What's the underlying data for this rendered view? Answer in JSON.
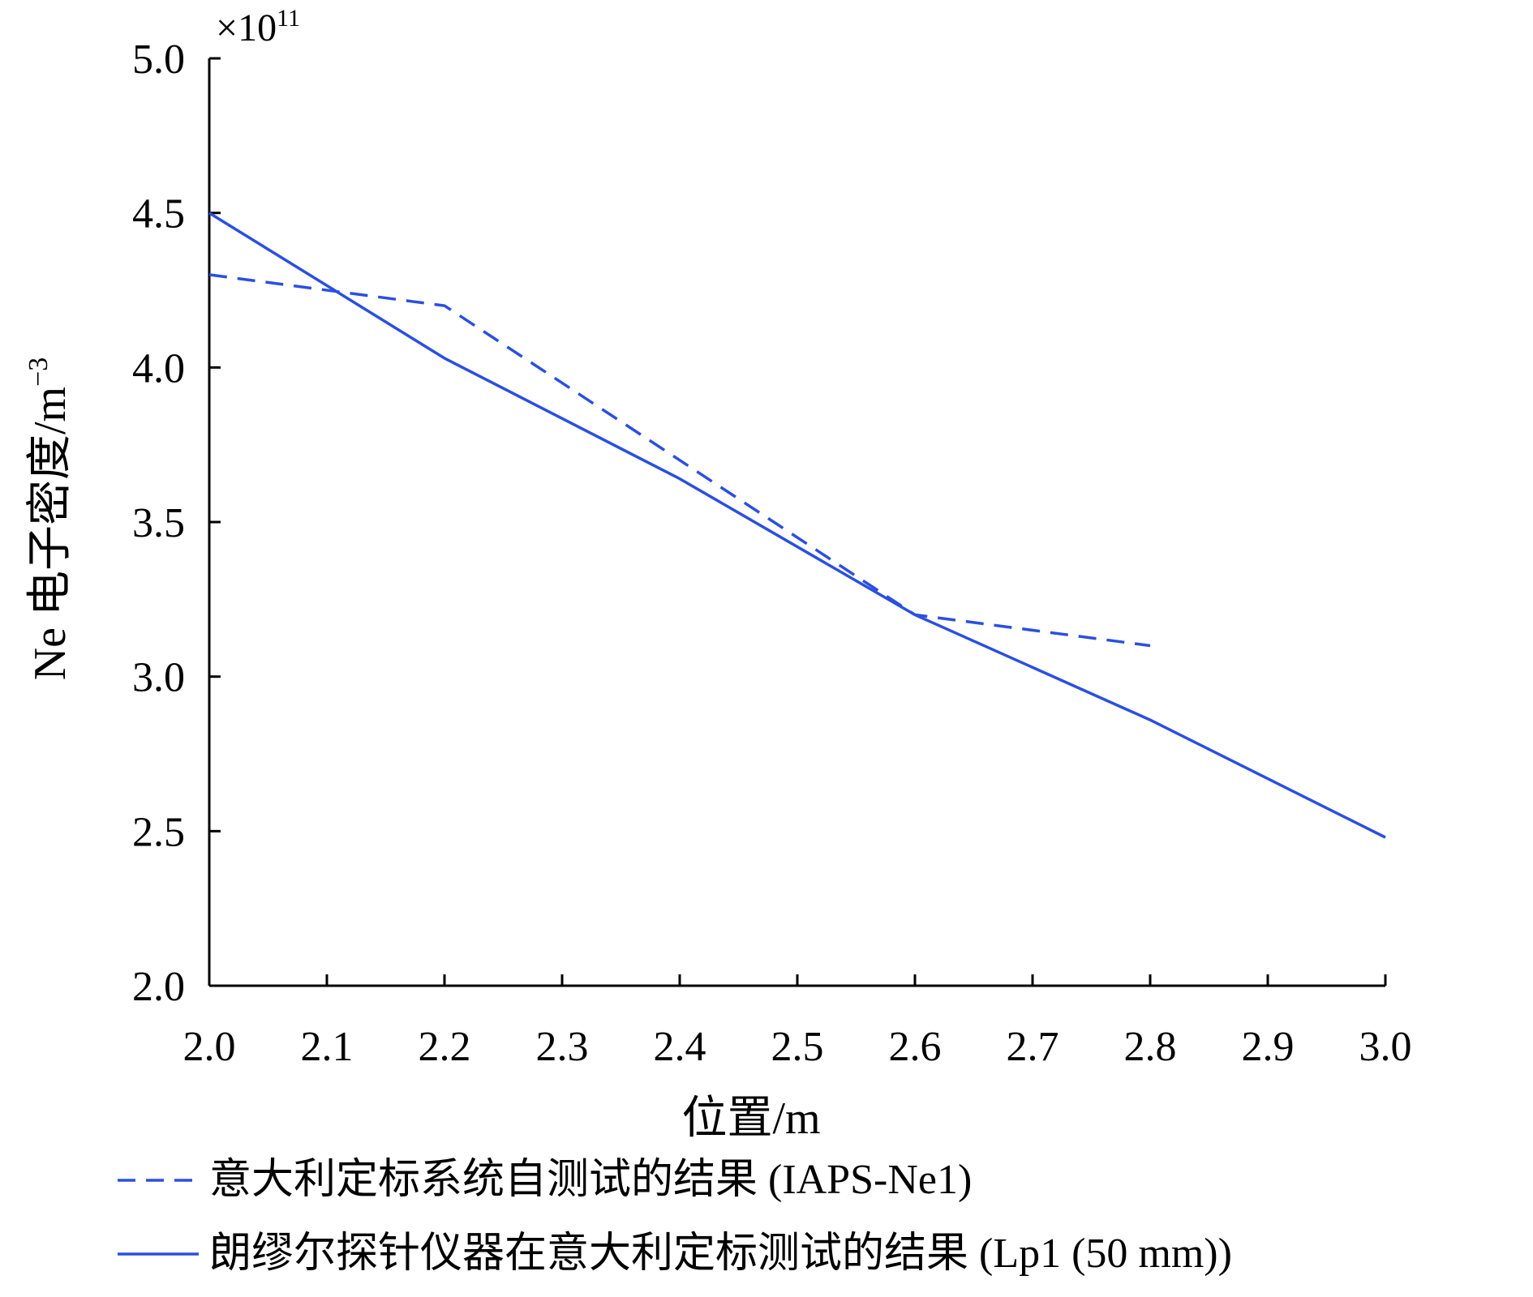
{
  "chart_data": {
    "type": "line",
    "xlabel": "位置/m",
    "ylabel": "Ne 电子密度/m",
    "ylabel_sup": "−3",
    "multiplier_prefix": "×10",
    "multiplier_exp": "11",
    "xlim": [
      2.0,
      3.0
    ],
    "ylim": [
      2.0,
      5.0
    ],
    "x_ticks": [
      "2.0",
      "2.1",
      "2.2",
      "2.3",
      "2.4",
      "2.5",
      "2.6",
      "2.7",
      "2.8",
      "2.9",
      "3.0"
    ],
    "y_ticks": [
      "2.0",
      "2.5",
      "3.0",
      "3.5",
      "4.0",
      "4.5",
      "5.0"
    ],
    "grid": false,
    "legend_position": "bottom",
    "series": [
      {
        "name": "意大利定标系统自测试的结果 (IAPS-Ne1)",
        "style": "dashed",
        "color": "#2b4fe0",
        "x": [
          2.0,
          2.2,
          2.4,
          2.6,
          2.8
        ],
        "y": [
          4.3,
          4.2,
          3.7,
          3.2,
          3.1
        ]
      },
      {
        "name": "朗缪尔探针仪器在意大利定标测试的结果 (Lp1 (50 mm))",
        "style": "solid",
        "color": "#2b4fe0",
        "x": [
          2.0,
          2.2,
          2.4,
          2.6,
          2.8,
          3.0
        ],
        "y": [
          4.5,
          4.03,
          3.64,
          3.2,
          2.86,
          2.48
        ]
      }
    ]
  }
}
